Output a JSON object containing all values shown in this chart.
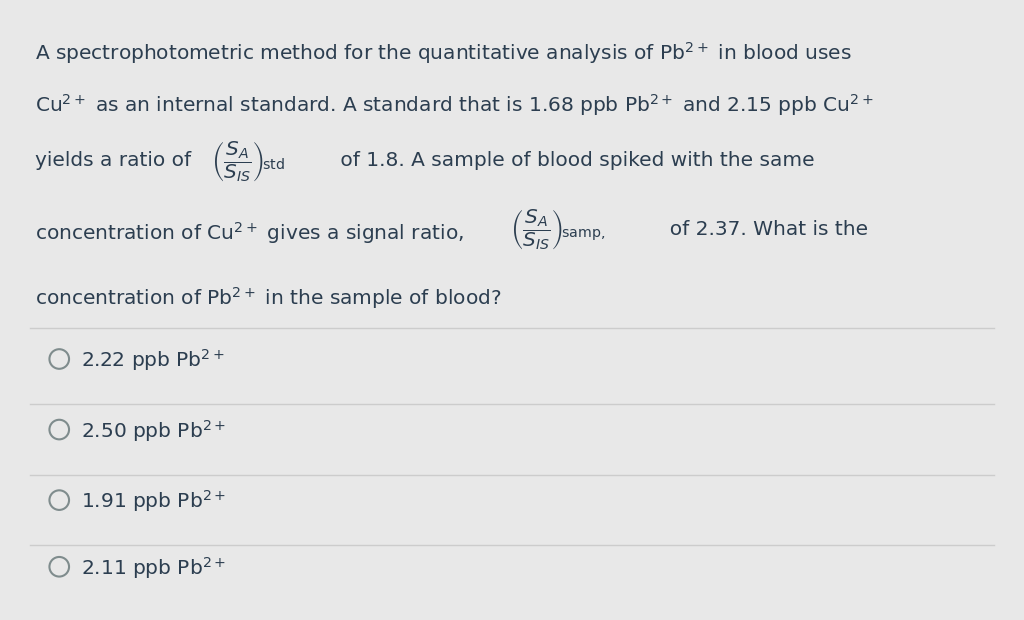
{
  "background_color": "#e8e8e8",
  "panel_color": "#ffffff",
  "panel_border_color": "#cccccc",
  "text_color": "#2c3e50",
  "divider_color": "#cccccc",
  "circle_color": "#7f8c8d",
  "fs": 14.5,
  "option_fs": 14.5,
  "line1": "A spectrophotometric method for the quantitative analysis of Pb$^{2+}$ in blood uses",
  "line2": "Cu$^{2+}$ as an internal standard. A standard that is 1.68 ppb Pb$^{2+}$ and 2.15 ppb Cu$^{2+}$",
  "line3a": "yields a ratio of ",
  "line3b": " of 1.8. A sample of blood spiked with the same",
  "line4a": "concentration of Cu$^{2+}$ gives a signal ratio,  ",
  "line4b": "  of 2.37. What is the",
  "line5": "concentration of Pb$^{2+}$ in the sample of blood?",
  "frac_std": "$\\left(\\dfrac{S_A}{S_{IS}}\\right)_{\\!\\mathrm{std}}$",
  "frac_samp": "$\\left(\\dfrac{S_A}{S_{IS}}\\right)_{\\!\\mathrm{samp,}}$",
  "options": [
    "2.22 ppb Pb$^{2+}$",
    "2.50 ppb Pb$^{2+}$",
    "1.91 ppb Pb$^{2+}$",
    "2.11 ppb Pb$^{2+}$"
  ]
}
